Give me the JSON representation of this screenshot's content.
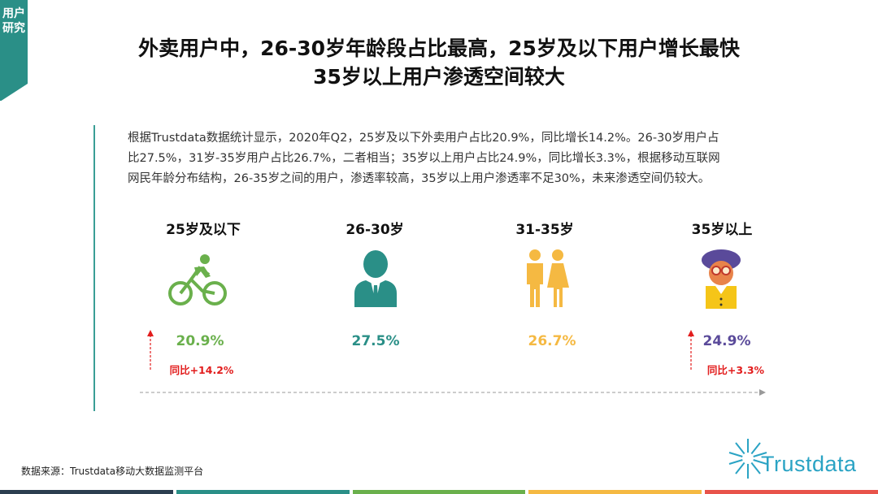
{
  "corner_tab": {
    "label": "用户研究"
  },
  "title": {
    "line1": "外卖用户中，26-30岁年龄段占比最高，25岁及以下用户增长最快",
    "line2": "35岁以上用户渗透空间较大"
  },
  "paragraph": {
    "lines": [
      "根据Trustdata数据统计显示，2020年Q2，25岁及以下外卖用户占比20.9%，同比增长14.2%。26-30岁用户占",
      "比27.5%，31岁-35岁用户占比26.7%，二者相当；35岁以上用户占比24.9%，同比增长3.3%，根据移动互联网",
      "网民年龄分布结构，26-35岁之间的用户，渗透率较高，35岁以上用户渗透率不足30%，未来渗透空间仍较大。"
    ]
  },
  "segments": [
    {
      "label": "25岁及以下",
      "value": "20.9%",
      "yoy": "同比+14.2%",
      "color": "#6ab04c",
      "icon": "cyclist-icon"
    },
    {
      "label": "26-30岁",
      "value": "27.5%",
      "yoy": "",
      "color": "#2a8f87",
      "icon": "businessman-icon"
    },
    {
      "label": "31-35岁",
      "value": "26.7%",
      "yoy": "",
      "color": "#f5b942",
      "icon": "couple-icon"
    },
    {
      "label": "35岁以上",
      "value": "24.9%",
      "yoy": "同比+3.3%",
      "color": "#5a4a9a",
      "icon": "elderly-woman-icon"
    }
  ],
  "source": "数据来源：Trustdata移动大数据监测平台",
  "logo": {
    "text": "Trustdata",
    "color": "#2aa3c4"
  },
  "bottom_bar_colors": [
    "#2c3e50",
    "#2a8f87",
    "#6ab04c",
    "#f5b942",
    "#e8534a"
  ]
}
